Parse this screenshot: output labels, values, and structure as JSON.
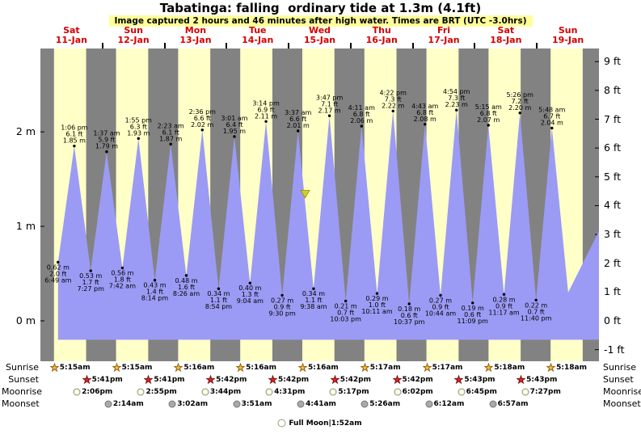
{
  "title": "Tabatinga: falling  ordinary tide at 1.3m (4.1ft)",
  "subtitle": "Image captured 2 hours and 46 minutes after high water. Times are BRT (UTC -3.0hrs)",
  "moon_phase": "Full Moon|1:52am",
  "colors": {
    "night_band": "#828282",
    "day_band": "#ffffc8",
    "tide_fill": "#9b9bf5",
    "day_label_red": "#d40000",
    "subtitle_bg": "#ffff99",
    "marker_fill": "#cfcf2a",
    "marker_stroke": "#8f8f00"
  },
  "axis": {
    "left": [
      {
        "label": "2 m",
        "value": 2
      },
      {
        "label": "1 m",
        "value": 1
      },
      {
        "label": "0 m",
        "value": 0
      }
    ],
    "right": [
      {
        "label": "9 ft",
        "value": 9
      },
      {
        "label": "8 ft",
        "value": 8
      },
      {
        "label": "7 ft",
        "value": 7
      },
      {
        "label": "6 ft",
        "value": 6
      },
      {
        "label": "5 ft",
        "value": 5
      },
      {
        "label": "4 ft",
        "value": 4
      },
      {
        "label": "3 ft",
        "value": 3
      },
      {
        "label": "2 ft",
        "value": 2
      },
      {
        "label": "1 ft",
        "value": 1
      },
      {
        "label": "0 ft",
        "value": 0
      },
      {
        "label": "-1 ft",
        "value": -1
      }
    ]
  },
  "astro_rows": {
    "sunrise": {
      "label": "Sunrise",
      "items": [
        {
          "day": 0,
          "time": "5:15am"
        },
        {
          "day": 1,
          "time": "5:15am"
        },
        {
          "day": 2,
          "time": "5:16am"
        },
        {
          "day": 3,
          "time": "5:16am"
        },
        {
          "day": 4,
          "time": "5:16am"
        },
        {
          "day": 5,
          "time": "5:17am"
        },
        {
          "day": 6,
          "time": "5:17am"
        },
        {
          "day": 7,
          "time": "5:18am"
        },
        {
          "day": 8,
          "time": "5:18am"
        }
      ]
    },
    "sunset": {
      "label": "Sunset",
      "items": [
        {
          "day": 0,
          "time": "5:41pm"
        },
        {
          "day": 1,
          "time": "5:41pm"
        },
        {
          "day": 2,
          "time": "5:42pm"
        },
        {
          "day": 3,
          "time": "5:42pm"
        },
        {
          "day": 4,
          "time": "5:42pm"
        },
        {
          "day": 5,
          "time": "5:42pm"
        },
        {
          "day": 6,
          "time": "5:43pm"
        },
        {
          "day": 7,
          "time": "5:43pm"
        }
      ]
    },
    "moonrise": {
      "label": "Moonrise",
      "items": [
        {
          "day": 0,
          "time": "2:06pm"
        },
        {
          "day": 1,
          "time": "2:55pm"
        },
        {
          "day": 2,
          "time": "3:44pm"
        },
        {
          "day": 3,
          "time": "4:31pm"
        },
        {
          "day": 4,
          "time": "5:17pm"
        },
        {
          "day": 5,
          "time": "6:02pm"
        },
        {
          "day": 6,
          "time": "6:45pm"
        },
        {
          "day": 7,
          "time": "7:27pm"
        }
      ]
    },
    "moonset": {
      "label": "Moonset",
      "items": [
        {
          "day": 1,
          "time": "2:14am"
        },
        {
          "day": 2,
          "time": "3:02am"
        },
        {
          "day": 3,
          "time": "3:51am"
        },
        {
          "day": 4,
          "time": "4:41am"
        },
        {
          "day": 5,
          "time": "5:26am"
        },
        {
          "day": 6,
          "time": "6:12am"
        },
        {
          "day": 7,
          "time": "6:57am"
        }
      ]
    }
  },
  "chart_data": {
    "type": "area",
    "title": "Tabatinga: falling  ordinary tide at 1.3m (4.1ft)",
    "x_days": [
      {
        "name": "Sat",
        "date": "11-Jan"
      },
      {
        "name": "Sun",
        "date": "12-Jan"
      },
      {
        "name": "Mon",
        "date": "13-Jan"
      },
      {
        "name": "Tue",
        "date": "14-Jan"
      },
      {
        "name": "Wed",
        "date": "15-Jan"
      },
      {
        "name": "Thu",
        "date": "16-Jan"
      },
      {
        "name": "Fri",
        "date": "17-Jan"
      },
      {
        "name": "Sat",
        "date": "18-Jan"
      },
      {
        "name": "Sun",
        "date": "19-Jan"
      }
    ],
    "y_left": {
      "unit": "m",
      "ticks": [
        0,
        1,
        2
      ]
    },
    "y_right": {
      "unit": "ft",
      "ticks": [
        -1,
        0,
        1,
        2,
        3,
        4,
        5,
        6,
        7,
        8,
        9
      ]
    },
    "ylim_m": [
      -0.43,
      2.88
    ],
    "fill_base_m": -0.2,
    "grid": false,
    "tide_events": [
      {
        "day": 0,
        "type": "low",
        "time": "6:49 am",
        "ft": "2.0",
        "m": "0.62"
      },
      {
        "day": 0,
        "type": "high",
        "time": "1:06 pm",
        "ft": "6.1",
        "m": "1.85"
      },
      {
        "day": 0,
        "type": "low",
        "time": "7:27 pm",
        "ft": "1.7",
        "m": "0.53"
      },
      {
        "day": 1,
        "type": "high",
        "time": "1:37 am",
        "ft": "5.9",
        "m": "1.79"
      },
      {
        "day": 1,
        "type": "low",
        "time": "7:42 am",
        "ft": "1.8",
        "m": "0.56"
      },
      {
        "day": 1,
        "type": "high",
        "time": "1:55 pm",
        "ft": "6.3",
        "m": "1.93"
      },
      {
        "day": 1,
        "type": "low",
        "time": "8:14 pm",
        "ft": "1.4",
        "m": "0.43"
      },
      {
        "day": 2,
        "type": "high",
        "time": "2:23 am",
        "ft": "6.1",
        "m": "1.87"
      },
      {
        "day": 2,
        "type": "low",
        "time": "8:26 am",
        "ft": "1.6",
        "m": "0.48"
      },
      {
        "day": 2,
        "type": "high",
        "time": "2:36 pm",
        "ft": "6.6",
        "m": "2.02"
      },
      {
        "day": 2,
        "type": "low",
        "time": "8:54 pm",
        "ft": "1.1",
        "m": "0.34"
      },
      {
        "day": 3,
        "type": "high",
        "time": "3:01 am",
        "ft": "6.4",
        "m": "1.95"
      },
      {
        "day": 3,
        "type": "low",
        "time": "9:04 am",
        "ft": "1.3",
        "m": "0.40"
      },
      {
        "day": 3,
        "type": "high",
        "time": "3:14 pm",
        "ft": "6.9",
        "m": "2.11"
      },
      {
        "day": 3,
        "type": "low",
        "time": "9:30 pm",
        "ft": "0.9",
        "m": "0.27"
      },
      {
        "day": 4,
        "type": "high",
        "time": "3:37 am",
        "ft": "6.6",
        "m": "2.01"
      },
      {
        "day": 4,
        "type": "low",
        "time": "9:38 am",
        "ft": "1.1",
        "m": "0.34"
      },
      {
        "day": 4,
        "type": "high",
        "time": "3:47 pm",
        "ft": "7.1",
        "m": "2.17"
      },
      {
        "day": 4,
        "type": "low",
        "time": "10:03 pm",
        "ft": "0.7",
        "m": "0.21"
      },
      {
        "day": 5,
        "type": "high",
        "time": "4:11 am",
        "ft": "6.8",
        "m": "2.06"
      },
      {
        "day": 5,
        "type": "low",
        "time": "10:11 am",
        "ft": "1.0",
        "m": "0.29"
      },
      {
        "day": 5,
        "type": "high",
        "time": "4:22 pm",
        "ft": "7.3",
        "m": "2.22"
      },
      {
        "day": 5,
        "type": "low",
        "time": "10:37 pm",
        "ft": "0.6",
        "m": "0.18"
      },
      {
        "day": 6,
        "type": "high",
        "time": "4:43 am",
        "ft": "6.8",
        "m": "2.08"
      },
      {
        "day": 6,
        "type": "low",
        "time": "10:44 am",
        "ft": "0.9",
        "m": "0.27"
      },
      {
        "day": 6,
        "type": "high",
        "time": "4:54 pm",
        "ft": "7.3",
        "m": "2.23"
      },
      {
        "day": 6,
        "type": "low",
        "time": "11:09 pm",
        "ft": "0.6",
        "m": "0.19"
      },
      {
        "day": 7,
        "type": "high",
        "time": "5:15 am",
        "ft": "6.8",
        "m": "2.07"
      },
      {
        "day": 7,
        "type": "low",
        "time": "11:17 am",
        "ft": "0.9",
        "m": "0.28"
      },
      {
        "day": 7,
        "type": "high",
        "time": "5:26 pm",
        "ft": "7.2",
        "m": "2.20"
      },
      {
        "day": 7,
        "type": "low",
        "time": "11:40 pm",
        "ft": "0.7",
        "m": "0.22"
      },
      {
        "day": 8,
        "type": "high",
        "time": "5:48 am",
        "ft": "6.7",
        "m": "2.04"
      }
    ],
    "curve_edge_points": [
      {
        "day": 8,
        "hour": 12.1,
        "m": 0.3
      },
      {
        "day": 8,
        "hour": 24.0,
        "m": 0.95
      }
    ],
    "current_marker": {
      "day": 4,
      "hour": 6.38,
      "m": 1.3
    }
  }
}
